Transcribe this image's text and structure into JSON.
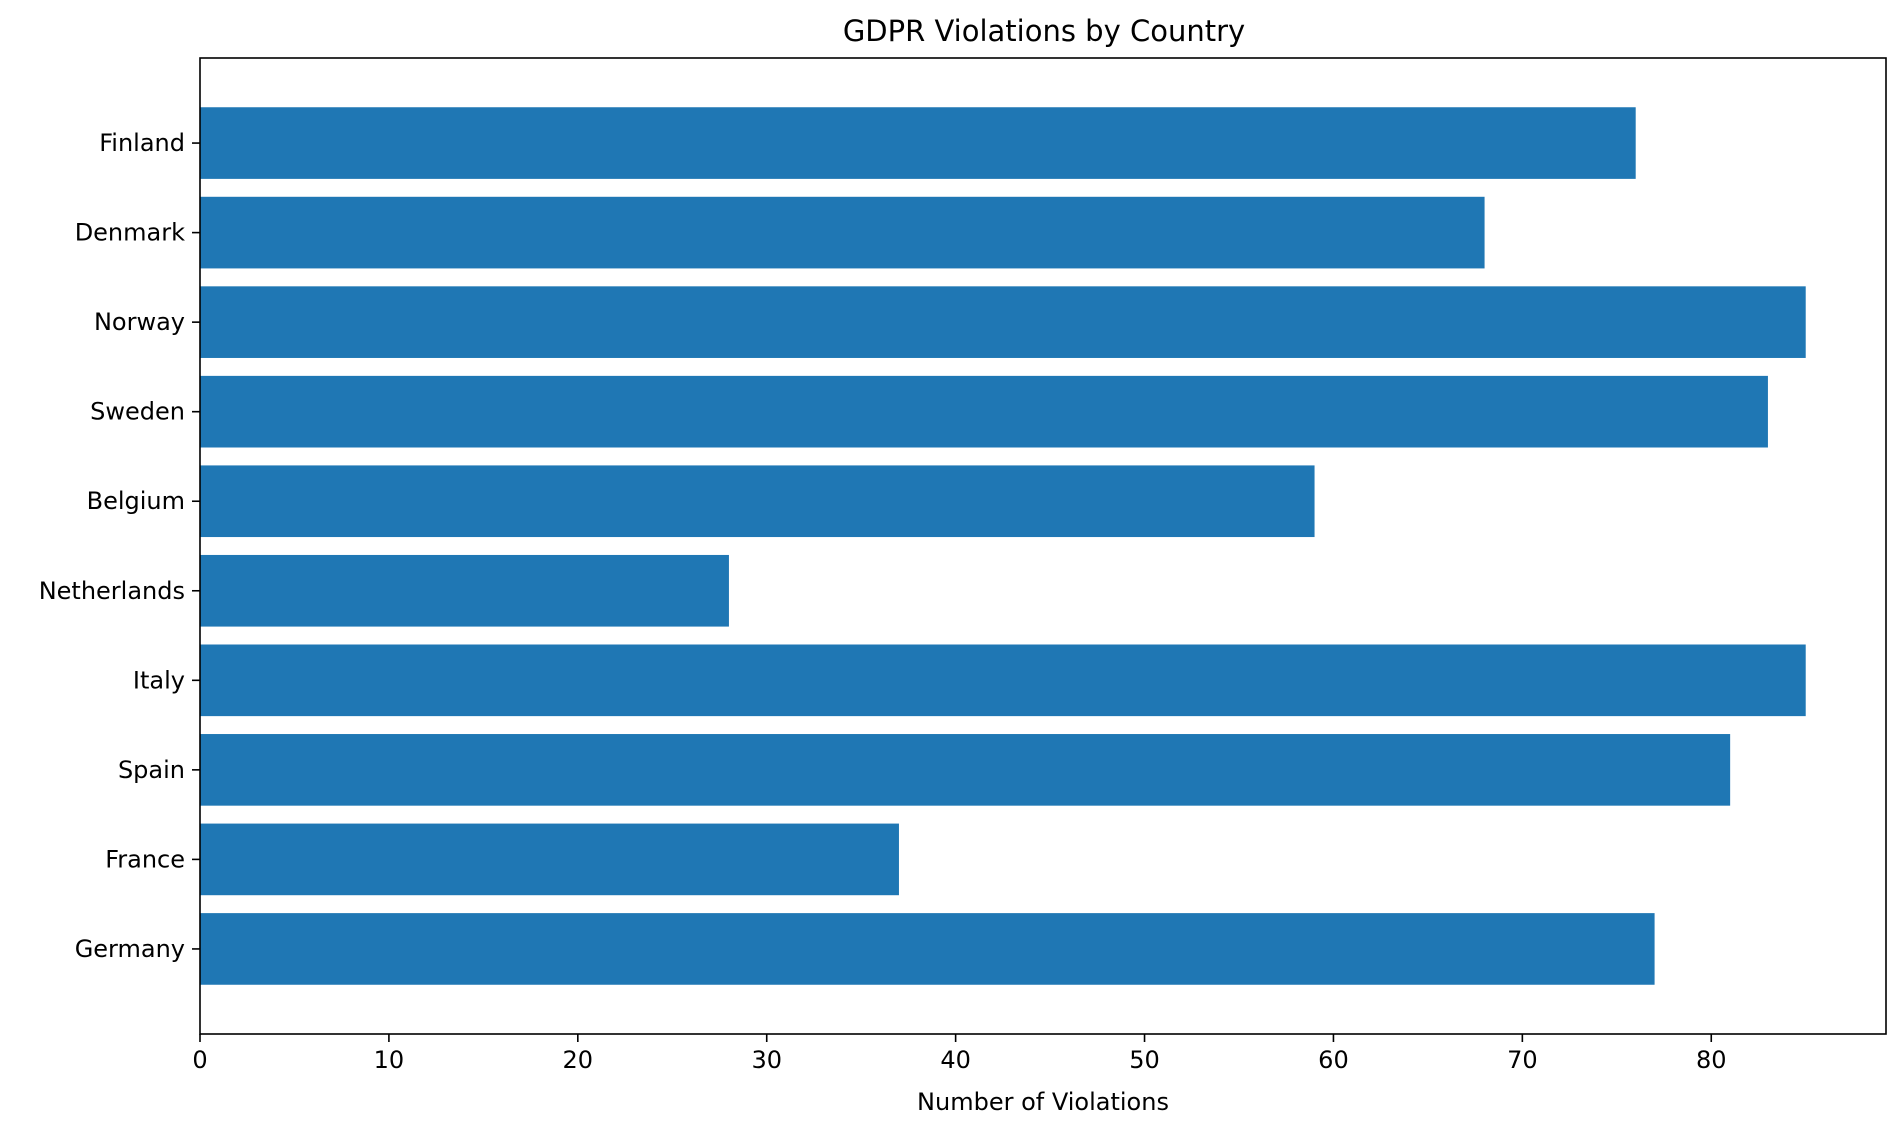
{
  "chart_data": {
    "type": "bar",
    "orientation": "horizontal",
    "title": "GDPR Violations by Country",
    "xlabel": "Number of Violations",
    "ylabel": "",
    "categories": [
      "Germany",
      "France",
      "Spain",
      "Italy",
      "Netherlands",
      "Belgium",
      "Sweden",
      "Norway",
      "Denmark",
      "Finland"
    ],
    "values": [
      77,
      37,
      81,
      85,
      28,
      59,
      83,
      85,
      68,
      76
    ],
    "xlim": [
      0,
      89.25
    ],
    "xticks": [
      0,
      10,
      20,
      30,
      40,
      50,
      60,
      70,
      80
    ],
    "grid": false,
    "bar_color": "#1f77b4"
  }
}
